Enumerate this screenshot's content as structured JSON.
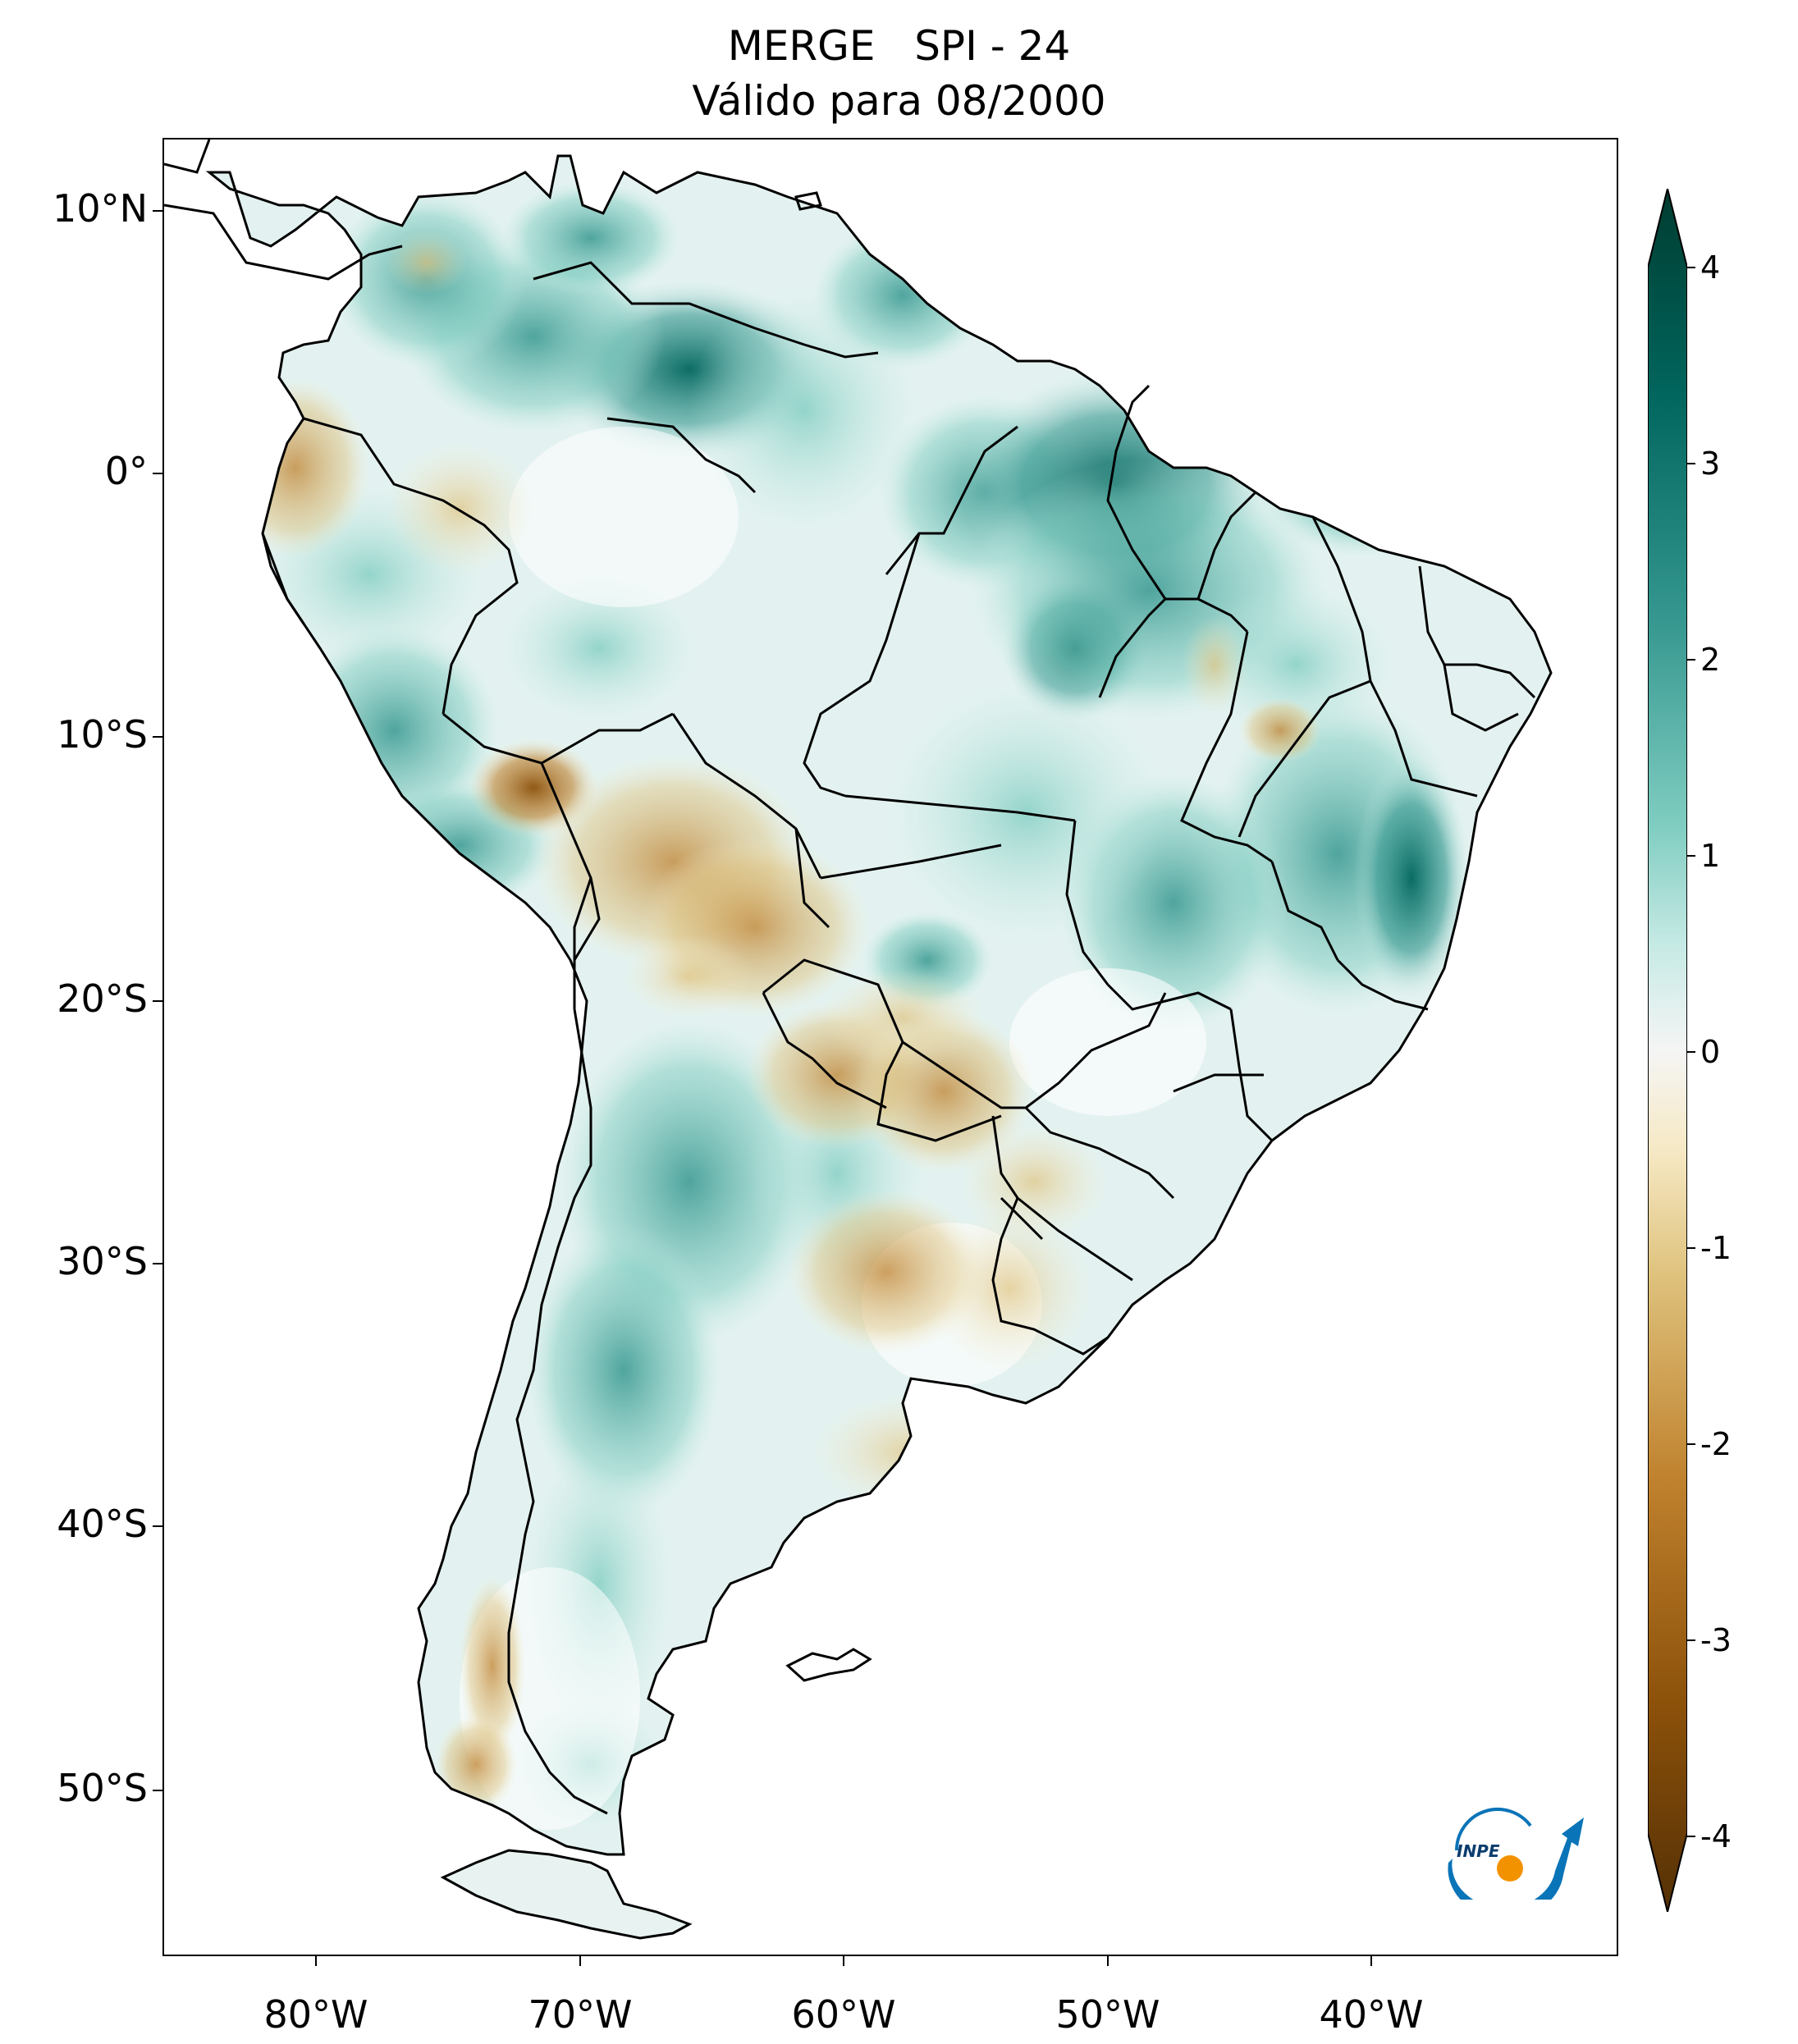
{
  "title": {
    "line1": "MERGE   SPI - 24",
    "line2": "Válido para 08/2000"
  },
  "map": {
    "region": "South America",
    "variable": "SPI - 24",
    "lat_ticks": [
      "10°N",
      "0°",
      "10°S",
      "20°S",
      "30°S",
      "40°S",
      "50°S"
    ],
    "lon_ticks": [
      "80°W",
      "70°W",
      "60°W",
      "50°W",
      "40°W"
    ]
  },
  "colorbar": {
    "min": -4,
    "max": 4,
    "extend": "both",
    "ticks": [
      "4",
      "3",
      "2",
      "1",
      "0",
      "-1",
      "-2",
      "-3",
      "-4"
    ],
    "colors": {
      "dry_extreme": "#543005",
      "dry_strong": "#8c510a",
      "dry_moderate": "#bf812d",
      "dry_mild": "#dfc27d",
      "dry_slight": "#f6e8c3",
      "neutral": "#f5f5f5",
      "wet_slight": "#c7eae5",
      "wet_mild": "#80cdc1",
      "wet_moderate": "#35978f",
      "wet_strong": "#01665e",
      "wet_extreme": "#003c30"
    }
  },
  "logo": {
    "text": "INPE"
  }
}
